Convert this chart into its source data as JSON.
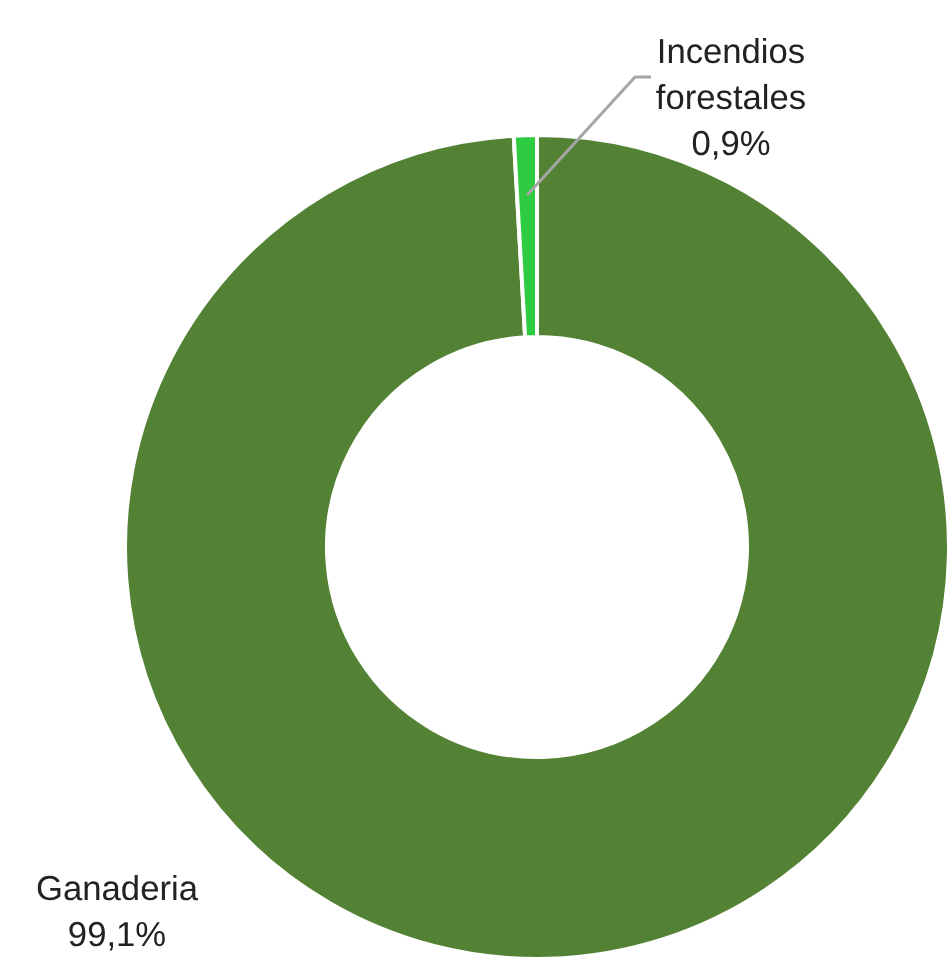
{
  "chart_data": {
    "type": "donut",
    "categories": [
      "Ganaderia",
      "Incendios forestales"
    ],
    "values": [
      99.1,
      0.9
    ],
    "colors": [
      "#548235",
      "#2ecc40"
    ],
    "value_labels": [
      "99,1%",
      "0,9%"
    ]
  }
}
